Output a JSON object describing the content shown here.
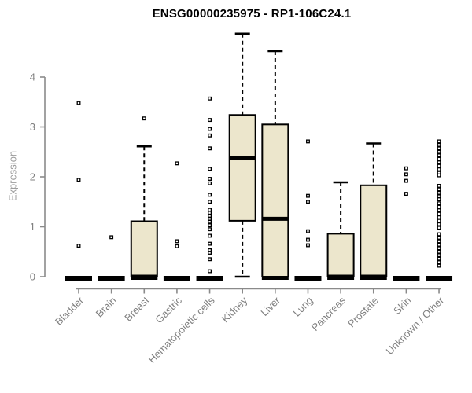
{
  "chart_data": {
    "type": "boxplot",
    "title": "ENSG00000235975 - RP1-106C24.1",
    "ylabel": "Expression",
    "xlabel": "",
    "ylim": [
      0,
      4.9
    ],
    "yticks": [
      "0",
      "1",
      "2",
      "3",
      "4"
    ],
    "grid": false,
    "legend": null,
    "categories": [
      "Bladder",
      "Brain",
      "Breast",
      "Gastric",
      "Hematopoietic cells",
      "Kidney",
      "Liver",
      "Lung",
      "Pancreas",
      "Prostate",
      "Skin",
      "Unknown / Other"
    ],
    "groups": [
      {
        "label": "Bladder",
        "q1": 0,
        "median": 0,
        "q3": 0,
        "whisker_low": 0,
        "whisker_high": 0,
        "outliers": [
          3.48,
          1.94,
          0.62
        ]
      },
      {
        "label": "Brain",
        "q1": 0,
        "median": 0,
        "q3": 0,
        "whisker_low": 0,
        "whisker_high": 0,
        "outliers": [
          0.79
        ]
      },
      {
        "label": "Breast",
        "q1": 0,
        "median": 0,
        "q3": 1.11,
        "whisker_low": 0,
        "whisker_high": 2.61,
        "outliers": [
          3.17
        ]
      },
      {
        "label": "Gastric",
        "q1": 0,
        "median": 0,
        "q3": 0,
        "whisker_low": 0,
        "whisker_high": 0,
        "outliers": [
          2.27,
          0.71,
          0.61
        ]
      },
      {
        "label": "Hematopoietic cells",
        "q1": 0,
        "median": 0,
        "q3": 0,
        "whisker_low": 0,
        "whisker_high": 0,
        "outliers": [
          3.57,
          3.14,
          2.96,
          2.83,
          2.57,
          2.16,
          1.96,
          1.87,
          1.64,
          1.5,
          1.34,
          1.28,
          1.22,
          1.16,
          1.1,
          1.03,
          0.95,
          0.82,
          0.66,
          0.53,
          0.48,
          0.35,
          0.11
        ]
      },
      {
        "label": "Kidney",
        "q1": 1.12,
        "median": 2.37,
        "q3": 3.24,
        "whisker_low": 0,
        "whisker_high": 4.87,
        "outliers": []
      },
      {
        "label": "Liver",
        "q1": 0,
        "median": 1.16,
        "q3": 3.05,
        "whisker_low": 0,
        "whisker_high": 4.52,
        "outliers": []
      },
      {
        "label": "Lung",
        "q1": 0,
        "median": 0,
        "q3": 0,
        "whisker_low": 0,
        "whisker_high": 0,
        "outliers": [
          2.71,
          1.62,
          1.5,
          0.91,
          0.74,
          0.63
        ]
      },
      {
        "label": "Pancreas",
        "q1": 0,
        "median": 0,
        "q3": 0.86,
        "whisker_low": 0,
        "whisker_high": 1.89,
        "outliers": []
      },
      {
        "label": "Prostate",
        "q1": 0,
        "median": 0,
        "q3": 1.83,
        "whisker_low": 0,
        "whisker_high": 2.67,
        "outliers": []
      },
      {
        "label": "Skin",
        "q1": 0,
        "median": 0,
        "q3": 0,
        "whisker_low": 0,
        "whisker_high": 0,
        "outliers": [
          2.17,
          2.05,
          1.92,
          1.66
        ]
      },
      {
        "label": "Unknown / Other",
        "q1": 0,
        "median": 0,
        "q3": 0,
        "whisker_low": 0,
        "whisker_high": 0,
        "outliers": [
          2.71,
          2.64,
          2.57,
          2.5,
          2.43,
          2.36,
          2.29,
          2.22,
          2.15,
          2.08,
          2.03,
          1.82,
          1.75,
          1.68,
          1.61,
          1.55,
          1.47,
          1.4,
          1.33,
          1.26,
          1.19,
          1.12,
          1.05,
          0.98,
          0.85,
          0.78,
          0.71,
          0.64,
          0.57,
          0.5,
          0.43,
          0.36,
          0.29,
          0.22
        ]
      }
    ],
    "colors": {
      "box_fill": "#ece6cc",
      "box_border": "#000000",
      "median": "#000000",
      "whisker": "#000000",
      "outlier": "#000000",
      "axis": "#8a8a8a",
      "tick_text": "#808080",
      "ylabel_text": "#9c9c9c",
      "title_text": "#000000",
      "background": "#ffffff"
    },
    "legend_position": "none"
  }
}
